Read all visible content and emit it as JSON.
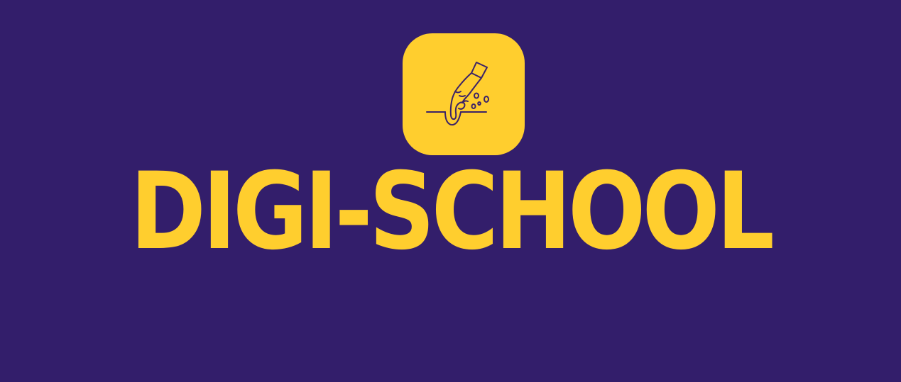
{
  "brand": {
    "name": "DIGI-SCHOOL",
    "icon": "hand-planting-seed-icon"
  },
  "colors": {
    "background": "#331e6b",
    "accent": "#ffce2e",
    "icon_stroke": "#3b2268"
  }
}
